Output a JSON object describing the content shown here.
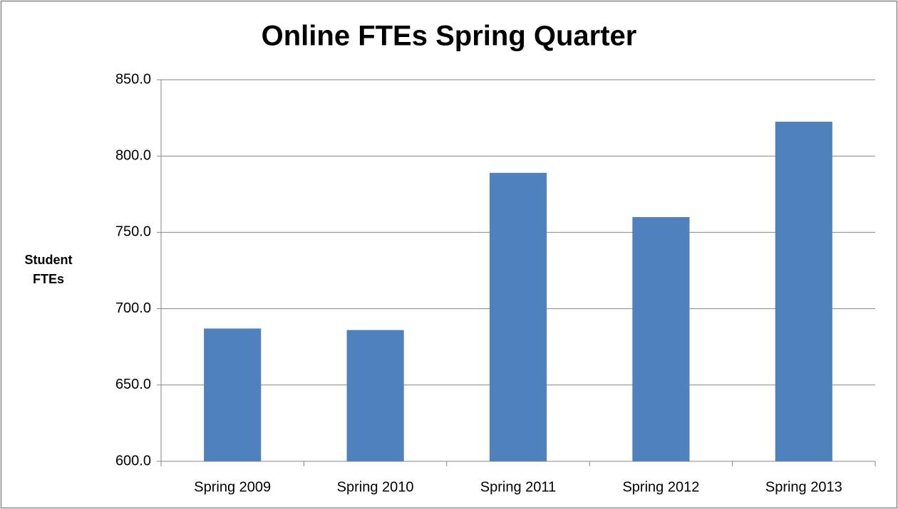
{
  "chart_data": {
    "type": "bar",
    "title": "Online FTEs Spring Quarter",
    "y_label": "Student FTEs",
    "categories": [
      "Spring 2009",
      "Spring 2010",
      "Spring 2011",
      "Spring 2012",
      "Spring 2013"
    ],
    "values": [
      687,
      686,
      789,
      760,
      822.5
    ],
    "color": "#4f81bd",
    "ylim": [
      600,
      850
    ],
    "yticks": [
      {
        "value": 600,
        "label": "600.0"
      },
      {
        "value": 650,
        "label": "650.0"
      },
      {
        "value": 700,
        "label": "700.0"
      },
      {
        "value": 750,
        "label": "750.0"
      },
      {
        "value": 800,
        "label": "800.0"
      },
      {
        "value": 850,
        "label": "850.0"
      }
    ],
    "grid": true
  }
}
